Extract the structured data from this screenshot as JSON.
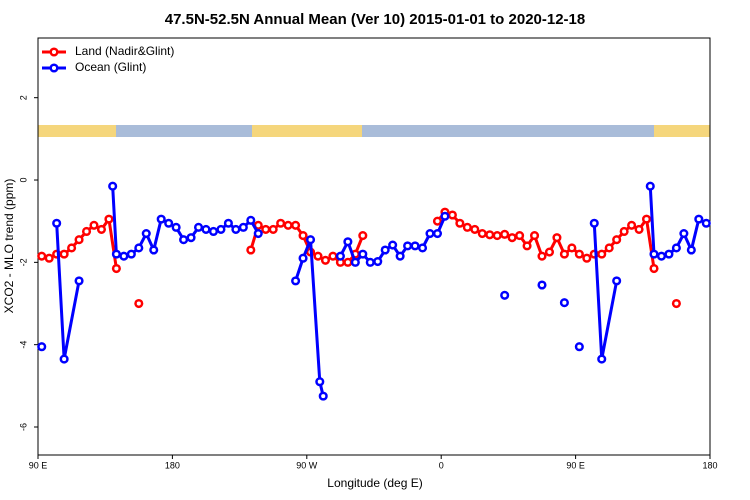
{
  "chart_data": {
    "type": "line",
    "title": "47.5N-52.5N Annual Mean (Ver 10)   2015-01-01 to 2020-12-18",
    "xlabel": "Longitude (deg E)",
    "ylabel": "XCO2 - MLO trend (ppm)",
    "xlim": [
      90,
      540
    ],
    "xticks": [
      {
        "value": 90,
        "label": "90 E"
      },
      {
        "value": 180,
        "label": "180"
      },
      {
        "value": 270,
        "label": "90 W"
      },
      {
        "value": 360,
        "label": "0"
      },
      {
        "value": 450,
        "label": "90 E"
      },
      {
        "value": 540,
        "label": "180"
      }
    ],
    "ylim": [
      -6.68,
      3.45
    ],
    "yticks": [
      -6,
      -4,
      -2,
      0,
      2
    ],
    "legend": "topleft",
    "series": [
      {
        "name": "Land (Nadir&Glint)",
        "color": "#ff0000",
        "x": [
          92.5,
          97.5,
          102.5,
          107.5,
          112.5,
          117.5,
          122.5,
          127.5,
          132.5,
          137.5,
          142.5,
          150,
          157.5,
          200,
          232.5,
          237.5,
          242.5,
          247.5,
          252.5,
          257.5,
          262.5,
          267.5,
          272.5,
          277.5,
          282.5,
          287.5,
          292.5,
          297.5,
          302.5,
          307.5,
          330,
          357.5,
          362.5,
          367.5,
          372.5,
          377.5,
          382.5,
          387.5,
          392.5,
          397.5,
          402.5,
          407.5,
          412.5,
          417.5,
          422.5,
          427.5,
          432.5,
          437.5,
          442.5,
          447.5,
          452.5,
          457.5,
          462.5,
          467.5,
          472.5,
          477.5,
          482.5,
          487.5,
          492.5,
          497.5,
          502.5,
          510,
          517.5
        ],
        "values": [
          -1.85,
          -1.9,
          -1.8,
          -1.8,
          -1.65,
          -1.45,
          -1.25,
          -1.1,
          -1.2,
          -0.95,
          -2.15,
          null,
          -3.0,
          null,
          -1.7,
          -1.1,
          -1.2,
          -1.2,
          -1.05,
          -1.1,
          -1.1,
          -1.35,
          -1.75,
          -1.85,
          -1.95,
          -1.85,
          -2.0,
          -2.0,
          -1.8,
          -1.35,
          null,
          -1.0,
          -0.78,
          -0.85,
          -1.05,
          -1.15,
          -1.2,
          -1.3,
          -1.33,
          -1.35,
          -1.32,
          -1.4,
          -1.35,
          -1.6,
          -1.35,
          -1.85,
          -1.75,
          -1.4,
          -1.8,
          -1.65,
          -1.8,
          -1.9,
          -1.8,
          -1.8,
          -1.65,
          -1.45,
          -1.25,
          -1.1,
          -1.2,
          -0.95,
          -2.15,
          null,
          -3.0
        ]
      },
      {
        "name": "Ocean (Glint)",
        "color": "#0000ff",
        "x": [
          92.5,
          97.5,
          102.5,
          107.5,
          117.5,
          130,
          140,
          142.5,
          147.5,
          152.5,
          157.5,
          162.5,
          167.5,
          172.5,
          177.5,
          182.5,
          187.5,
          192.5,
          197.5,
          202.5,
          207.5,
          212.5,
          217.5,
          222.5,
          227.5,
          232.5,
          237.5,
          250,
          262.5,
          267.5,
          272.5,
          278.7,
          281,
          287,
          292.5,
          297.5,
          302.5,
          307.5,
          312.5,
          317.5,
          322.5,
          327.5,
          332.5,
          337.5,
          342.5,
          347.5,
          352.5,
          357.5,
          362.5,
          380,
          402.5,
          415,
          427.5,
          435,
          442.5,
          447.5,
          452.5,
          457.5,
          462.5,
          467.5,
          477.5,
          490,
          500,
          502.5,
          507.5,
          512.5,
          517.5,
          522.5,
          527.5,
          532.5,
          537.5
        ],
        "values": [
          -4.05,
          null,
          -1.05,
          -4.35,
          -2.45,
          null,
          -0.15,
          -1.8,
          -1.85,
          -1.8,
          -1.65,
          -1.3,
          -1.7,
          -0.95,
          -1.05,
          -1.15,
          -1.45,
          -1.4,
          -1.15,
          -1.2,
          -1.25,
          -1.2,
          -1.05,
          -1.2,
          -1.15,
          -0.98,
          -1.3,
          null,
          -2.45,
          -1.9,
          -1.45,
          -4.9,
          -5.25,
          null,
          -1.85,
          -1.5,
          -2.0,
          -1.8,
          -2.0,
          -1.98,
          -1.7,
          -1.58,
          -1.85,
          -1.6,
          -1.6,
          -1.65,
          -1.3,
          -1.3,
          -0.88,
          null,
          -2.8,
          null,
          -2.55,
          null,
          -2.98,
          null,
          -4.05,
          null,
          -1.05,
          -4.35,
          -2.45,
          null,
          -0.15,
          -1.8,
          -1.85,
          -1.8,
          -1.65,
          -1.3,
          -1.7,
          -0.95,
          -1.05
        ]
      }
    ]
  }
}
